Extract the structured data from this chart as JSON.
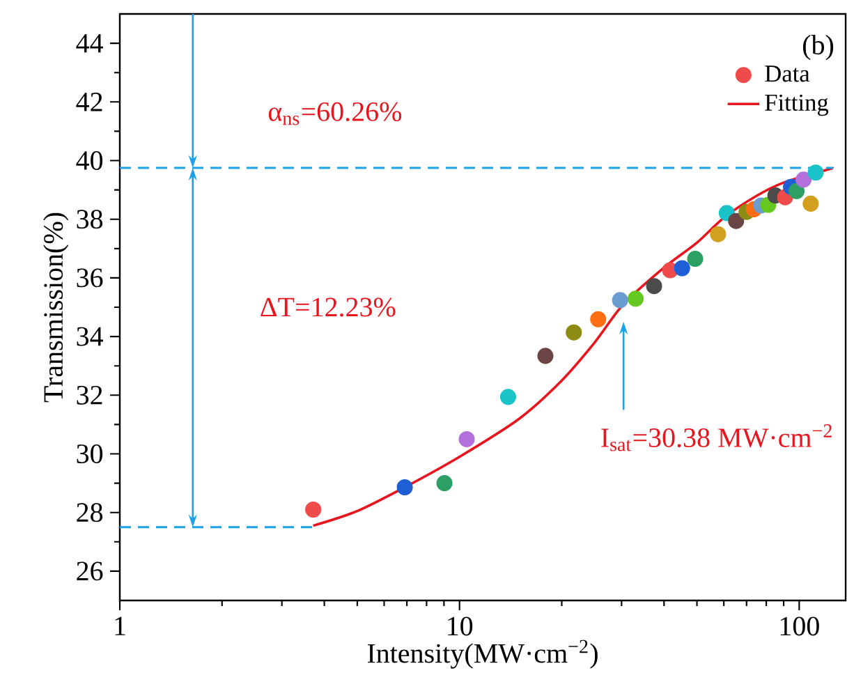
{
  "chart_data": {
    "type": "scatter",
    "xlabel": "Intensity(MW·cm$^{−2}$)",
    "ylabel": "Transmission(%)",
    "log": "x",
    "xlim": [
      1,
      137
    ],
    "ylim": [
      25,
      45
    ],
    "xticks": [
      1,
      10,
      100
    ],
    "yticks": [
      26,
      28,
      30,
      32,
      34,
      36,
      38,
      40,
      42,
      44
    ],
    "legend": "top right",
    "annotations": [
      "(b)",
      "α$_{ns}$=60.26%",
      "ΔT=12.23%",
      "I$_{sat}$=30.38 MW·cm$^{−2}$"
    ],
    "series": [
      {
        "name": "Data",
        "marker": "circle",
        "x": [
          3.71,
          6.9,
          9.03,
          10.5,
          13.9,
          17.9,
          21.7,
          25.6,
          29.7,
          33.0,
          37.4,
          41.7,
          45.2,
          49.4,
          57.7,
          61.2,
          65.2,
          70.0,
          73.6,
          77.3,
          81.1,
          85.1,
          90.9,
          94.6,
          98.2,
          103.0,
          108.1,
          111.8
        ],
        "values": [
          28.1,
          28.86,
          29.0,
          30.5,
          31.94,
          33.34,
          34.14,
          34.59,
          35.24,
          35.29,
          35.72,
          36.26,
          36.33,
          36.65,
          37.49,
          38.21,
          37.94,
          38.25,
          38.34,
          38.47,
          38.49,
          38.81,
          38.75,
          39.1,
          38.96,
          39.35,
          38.53,
          39.59
        ],
        "colors": [
          "#f04b4b",
          "#1f5fd6",
          "#2ca064",
          "#b370db",
          "#19c3c8",
          "#6b4545",
          "#8c8c14",
          "#ff6e14",
          "#6a9cd0",
          "#64c81e",
          "#4b4b4b",
          "#f04b4b",
          "#1f5fd6",
          "#2ca064",
          "#d2a01e",
          "#19c3c8",
          "#6b4545",
          "#8c8c14",
          "#ff6e14",
          "#6a9cd0",
          "#64c81e",
          "#4b4b4b",
          "#f04b4b",
          "#1f5fd6",
          "#2ca064",
          "#b370db",
          "#d2a01e",
          "#19c3c8"
        ]
      },
      {
        "name": "Fitting",
        "type": "line",
        "color": "#e8141e",
        "marker": "none",
        "x": [
          3.71,
          5,
          7,
          10,
          15,
          20,
          25,
          30.38,
          40,
          50,
          60,
          75,
          90,
          120,
          126
        ],
        "values": [
          27.55,
          28.05,
          28.9,
          29.9,
          31.2,
          32.5,
          33.8,
          35.1,
          36.35,
          37.2,
          38.05,
          38.8,
          39.25,
          39.68,
          39.74
        ]
      },
      {
        "type": "line",
        "color": "#1aa3e8",
        "line_style": "dashed",
        "x": [
          1,
          126
        ],
        "values": [
          39.75,
          39.75
        ]
      },
      {
        "type": "line",
        "color": "#1aa3e8",
        "line_style": "dashed",
        "x": [
          1,
          3.71
        ],
        "values": [
          27.5,
          27.5
        ]
      }
    ]
  }
}
